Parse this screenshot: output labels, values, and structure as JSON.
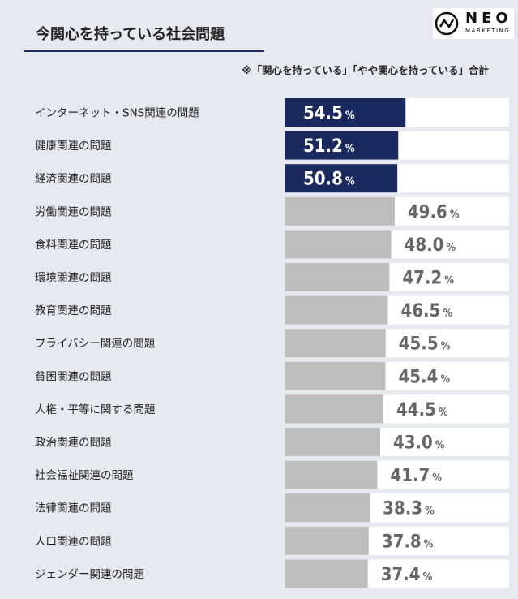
{
  "title": "今関心を持っている社会問題",
  "note": "※「関心を持っている」「やや関心を持っている」合計",
  "logo": {
    "word": "NEO",
    "sub": "MARKETING"
  },
  "colors": {
    "highlight": "#1b2a5e",
    "normal": "#bdbdbd",
    "track": "#ffffff",
    "value_normal": "#666666",
    "value_highlight": "#ffffff"
  },
  "chart_data": {
    "type": "bar",
    "orientation": "horizontal",
    "value_suffix": "%",
    "xlim": [
      0,
      100
    ],
    "highlight_count": 3,
    "categories": [
      "インターネット・SNS関連の問題",
      "健康関連の問題",
      "経済関連の問題",
      "労働関連の問題",
      "食料関連の問題",
      "環境関連の問題",
      "教育関連の問題",
      "プライバシー関連の問題",
      "貧困関連の問題",
      "人権・平等に関する問題",
      "政治関連の問題",
      "社会福祉関連の問題",
      "法律関連の問題",
      "人口関連の問題",
      "ジェンダー関連の問題"
    ],
    "values": [
      54.5,
      51.2,
      50.8,
      49.6,
      48.0,
      47.2,
      46.5,
      45.5,
      45.4,
      44.5,
      43.0,
      41.7,
      38.3,
      37.8,
      37.4
    ],
    "value_labels": [
      "54.5",
      "51.2",
      "50.8",
      "49.6",
      "48.0",
      "47.2",
      "46.5",
      "45.5",
      "45.4",
      "44.5",
      "43.0",
      "41.7",
      "38.3",
      "37.8",
      "37.4"
    ]
  }
}
